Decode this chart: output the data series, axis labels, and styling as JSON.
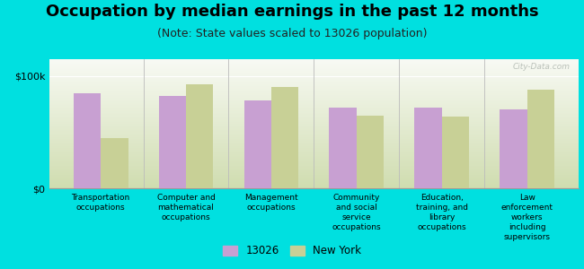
{
  "title": "Occupation by median earnings in the past 12 months",
  "subtitle": "(Note: State values scaled to 13026 population)",
  "categories": [
    "Transportation\noccupations",
    "Computer and\nmathematical\noccupations",
    "Management\noccupations",
    "Community\nand social\nservice\noccupations",
    "Education,\ntraining, and\nlibrary\noccupations",
    "Law\nenforcement\nworkers\nincluding\nsupervisors"
  ],
  "values_13026": [
    85000,
    82000,
    78000,
    72000,
    72000,
    70000
  ],
  "values_ny": [
    45000,
    93000,
    90000,
    65000,
    64000,
    88000
  ],
  "color_13026": "#c8a0d2",
  "color_ny": "#c8d096",
  "background_outer": "#00e0e0",
  "background_plot_top": "#f8faf4",
  "background_plot_bottom": "#d0ddb0",
  "ylim": [
    0,
    115000
  ],
  "yticks": [
    0,
    100000
  ],
  "ytick_labels": [
    "$0",
    "$100k"
  ],
  "watermark": "City-Data.com",
  "legend_label_13026": "13026",
  "legend_label_ny": "New York",
  "title_fontsize": 13,
  "subtitle_fontsize": 9,
  "bar_width": 0.32
}
